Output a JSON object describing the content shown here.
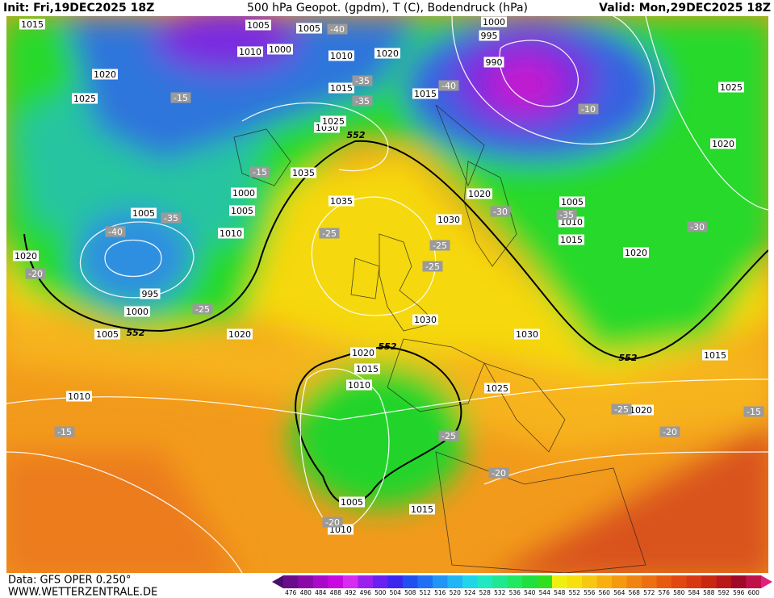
{
  "header": {
    "init": "Init: Fri,19DEC2025 18Z",
    "title": "500 hPa Geopot. (gpdm), T (C), Bodendruck (hPa)",
    "valid": "Valid: Mon,29DEC2025 18Z"
  },
  "footer": {
    "data": "Data: GFS OPER 0.250°",
    "site": "WWW.WETTERZENTRALE.DE"
  },
  "colorbar": {
    "levels": [
      476,
      480,
      484,
      488,
      492,
      496,
      500,
      504,
      508,
      512,
      516,
      520,
      524,
      528,
      532,
      536,
      540,
      544,
      548,
      552,
      556,
      560,
      564,
      568,
      572,
      576,
      580,
      584,
      588,
      592,
      596,
      600
    ],
    "colors": [
      "#4b0c6b",
      "#6a0d8a",
      "#8a0aa8",
      "#aa0ac8",
      "#c80ae0",
      "#d62bf0",
      "#9b20f0",
      "#6a20f0",
      "#3a28f0",
      "#2050f0",
      "#2070f5",
      "#2095f5",
      "#20b5f5",
      "#20d5e8",
      "#20e8c0",
      "#20e890",
      "#20e860",
      "#20e040",
      "#30e020",
      "#f0f010",
      "#f8e010",
      "#f8c810",
      "#f8b010",
      "#f59a10",
      "#f08410",
      "#ec7010",
      "#e85a10",
      "#e04810",
      "#d83810",
      "#c82810",
      "#b81818",
      "#a00828",
      "#c0104a",
      "#e02080"
    ]
  },
  "map": {
    "isobar_labels": [
      "1015",
      "1005",
      "1005",
      "1000",
      "995",
      "1010",
      "1000",
      "1010",
      "1020",
      "990",
      "1020",
      "1025",
      "1015",
      "1015",
      "1025",
      "1030",
      "1025",
      "1020",
      "1035",
      "1000",
      "1020",
      "1005",
      "1005",
      "1035",
      "1005",
      "1030",
      "1010",
      "1010",
      "1015",
      "1020",
      "1020",
      "995",
      "1000",
      "1030",
      "1005",
      "1020",
      "1030",
      "1020",
      "1015",
      "1010",
      "1025",
      "1015",
      "1010",
      "1020",
      "1005",
      "1015",
      "1010"
    ],
    "temperature_labels": [
      "-40",
      "-15",
      "-40",
      "-10",
      "-35",
      "-35",
      "-15",
      "-35",
      "-30",
      "-35",
      "-40",
      "-25",
      "-25",
      "-25",
      "-30",
      "-20",
      "-25",
      "-25",
      "-15",
      "-15",
      "-20",
      "-25",
      "-20",
      "-20"
    ],
    "height_labels": [
      "552",
      "552",
      "552",
      "552"
    ]
  }
}
